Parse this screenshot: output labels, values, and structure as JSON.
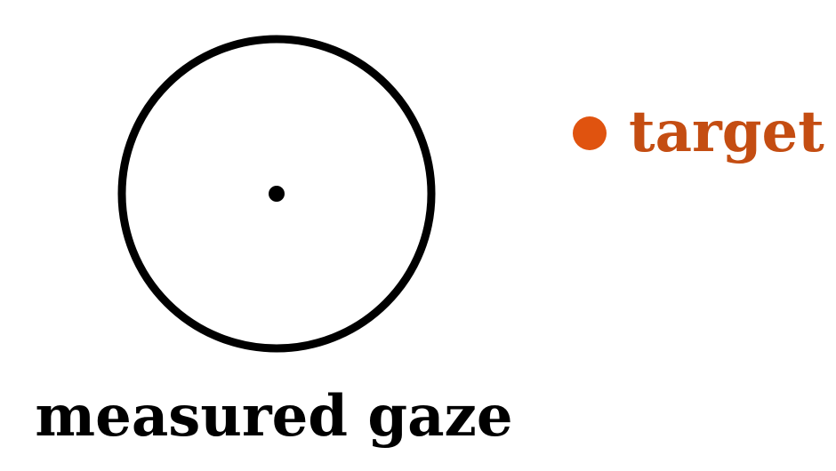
{
  "diagram": {
    "gaze_label": "measured gaze",
    "target_label": "target"
  },
  "colors": {
    "gaze": "#000000",
    "target_dot": "#e0530f",
    "target_text": "#c44d12",
    "background": "#ffffff"
  }
}
